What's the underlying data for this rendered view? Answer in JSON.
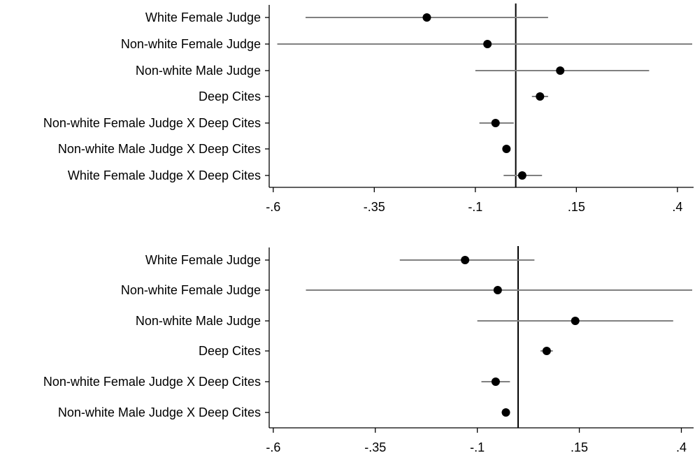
{
  "chart_data": [
    {
      "type": "coefficient-plot",
      "title": "",
      "xlabel": "",
      "ylabel": "",
      "xlim": [
        -0.61,
        0.44
      ],
      "xticks": [
        -0.6,
        -0.35,
        -0.1,
        0.15,
        0.4
      ],
      "xtick_labels": [
        "-.6",
        "-.35",
        "-.1",
        ".15",
        ".4"
      ],
      "reference_line_x": 0.0,
      "grid": false,
      "categories": [
        "White Female Judge",
        "Non-white Female Judge",
        "Non-white Male Judge",
        "Deep Cites",
        "Non-white Female Judge X Deep Cites",
        "Non-white Male Judge X Deep Cites",
        "White Female Judge X Deep Cites"
      ],
      "estimates": [
        -0.22,
        -0.07,
        0.11,
        0.06,
        -0.05,
        -0.023,
        0.016
      ],
      "ci_low": [
        -0.52,
        -0.59,
        -0.1,
        0.04,
        -0.09,
        -0.023,
        -0.03
      ],
      "ci_high": [
        0.08,
        0.45,
        0.33,
        0.08,
        -0.005,
        -0.023,
        0.065
      ],
      "colors": {
        "marker": "#000000",
        "ci": "#808080",
        "ref_line": "#000000",
        "axis": "#000000"
      }
    },
    {
      "type": "coefficient-plot",
      "title": "",
      "xlabel": "",
      "ylabel": "",
      "xlim": [
        -0.61,
        0.43
      ],
      "xticks": [
        -0.6,
        -0.35,
        -0.1,
        0.15,
        0.4
      ],
      "xtick_labels": [
        "-.6",
        "-.35",
        "-.1",
        ".15",
        ".4"
      ],
      "reference_line_x": 0.0,
      "grid": false,
      "categories": [
        "White Female Judge",
        "Non-white Female Judge",
        "Non-white Male Judge",
        "Deep Cites",
        "Non-white Female Judge X Deep Cites",
        "Non-white Male Judge X Deep Cites"
      ],
      "estimates": [
        -0.13,
        -0.05,
        0.14,
        0.07,
        -0.055,
        -0.03
      ],
      "ci_low": [
        -0.29,
        -0.52,
        -0.1,
        0.055,
        -0.09,
        -0.04
      ],
      "ci_high": [
        0.04,
        0.44,
        0.38,
        0.085,
        -0.02,
        -0.02
      ],
      "colors": {
        "marker": "#000000",
        "ci": "#808080",
        "ref_line": "#000000",
        "axis": "#000000"
      }
    }
  ]
}
